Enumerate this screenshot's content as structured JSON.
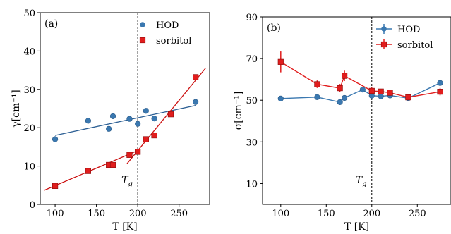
{
  "chart_data": [
    {
      "type": "scatter",
      "panel_label": "(a)",
      "xlabel": "T [K]",
      "ylabel": "γ[cm⁻¹]",
      "xlim": [
        82,
        287
      ],
      "ylim": [
        0,
        50
      ],
      "xticks": [
        100,
        150,
        200,
        250
      ],
      "yticks": [
        0,
        10,
        20,
        30,
        40,
        50
      ],
      "legend_position": "top-right",
      "vline": {
        "x": 200,
        "label": "T_g"
      },
      "series": [
        {
          "name": "HOD",
          "marker": "circle",
          "color": "#3a78b0",
          "x": [
            100,
            140,
            165,
            170,
            190,
            200,
            210,
            220,
            270
          ],
          "y": [
            17.0,
            21.8,
            19.7,
            23.0,
            22.3,
            21.0,
            24.4,
            22.4,
            26.7
          ]
        },
        {
          "name": "sorbitol",
          "marker": "square",
          "color": "#e11d1d",
          "x": [
            100,
            140,
            165,
            170,
            190,
            200,
            210,
            220,
            240,
            270
          ],
          "y": [
            4.8,
            8.7,
            10.3,
            10.3,
            12.9,
            13.7,
            17.0,
            18.0,
            23.5,
            33.2
          ]
        }
      ],
      "fit_lines": [
        {
          "color": "#2c5f94",
          "x": [
            100,
            270
          ],
          "y": [
            18.0,
            25.8
          ]
        },
        {
          "color": "#cc1111",
          "x": [
            87,
            203
          ],
          "y": [
            3.7,
            14.3
          ]
        },
        {
          "color": "#cc1111",
          "x": [
            187,
            282
          ],
          "y": [
            10.6,
            35.5
          ]
        }
      ]
    },
    {
      "type": "scatter",
      "panel_label": "(b)",
      "xlabel": "T [K]",
      "ylabel": "σ[cm⁻¹]",
      "xlim": [
        80,
        287
      ],
      "ylim": [
        0,
        90
      ],
      "xticks": [
        100,
        150,
        200,
        250
      ],
      "yticks": [
        10,
        30,
        50,
        70,
        90
      ],
      "legend_position": "top-right",
      "vline": {
        "x": 200,
        "label": "T_g"
      },
      "series": [
        {
          "name": "HOD",
          "marker": "circle",
          "color": "#3a78b0",
          "x": [
            100,
            140,
            165,
            170,
            190,
            200,
            210,
            220,
            240,
            275
          ],
          "y": [
            50.8,
            51.5,
            49.1,
            51.1,
            55.1,
            52.2,
            51.9,
            52.3,
            51.0,
            58.3
          ],
          "yerr": [
            0.8,
            0.8,
            0.8,
            0.8,
            0.8,
            0.8,
            0.8,
            0.8,
            0.8,
            0.8
          ]
        },
        {
          "name": "sorbitol",
          "marker": "square",
          "color": "#e11d1d",
          "x": [
            100,
            140,
            165,
            170,
            200,
            210,
            220,
            240,
            275
          ],
          "y": [
            68.4,
            57.7,
            55.8,
            61.7,
            54.5,
            54.2,
            53.6,
            51.4,
            54.1
          ],
          "yerr": [
            5.0,
            1.8,
            2.0,
            2.5,
            1.6,
            1.2,
            1.5,
            1.2,
            1.8
          ]
        }
      ]
    }
  ]
}
